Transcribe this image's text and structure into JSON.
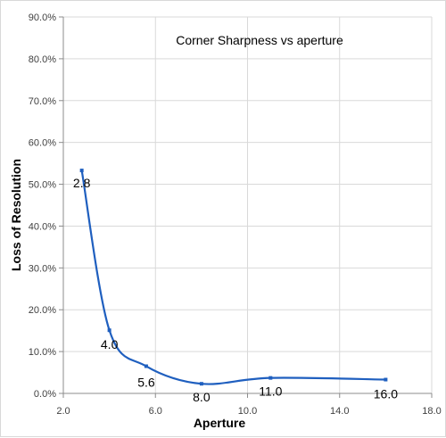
{
  "chart_data": {
    "type": "line",
    "title": "Corner Sharpness vs aperture",
    "xlabel": "Aperture",
    "ylabel": "Loss of Resolution",
    "xlim": [
      2.0,
      18.0
    ],
    "ylim": [
      0,
      90
    ],
    "x_ticks": [
      2.0,
      6.0,
      10.0,
      14.0,
      18.0
    ],
    "x_tick_labels": [
      "2.0",
      "6.0",
      "10.0",
      "14.0",
      "18.0"
    ],
    "y_ticks": [
      0,
      10,
      20,
      30,
      40,
      50,
      60,
      70,
      80,
      90
    ],
    "y_tick_labels": [
      "0.0%",
      "10.0%",
      "20.0%",
      "30.0%",
      "40.0%",
      "50.0%",
      "60.0%",
      "70.0%",
      "80.0%",
      "90.0%"
    ],
    "grid": true,
    "smooth": true,
    "series": [
      {
        "color": "#1f5fbf",
        "x": [
          2.8,
          4.0,
          5.6,
          8.0,
          11.0,
          16.0
        ],
        "values": [
          53.3,
          15.1,
          6.5,
          2.3,
          3.7,
          3.3
        ],
        "data_labels": [
          "2.8",
          "4.0",
          "5.6",
          "8.0",
          "11.0",
          "16.0"
        ]
      }
    ]
  }
}
